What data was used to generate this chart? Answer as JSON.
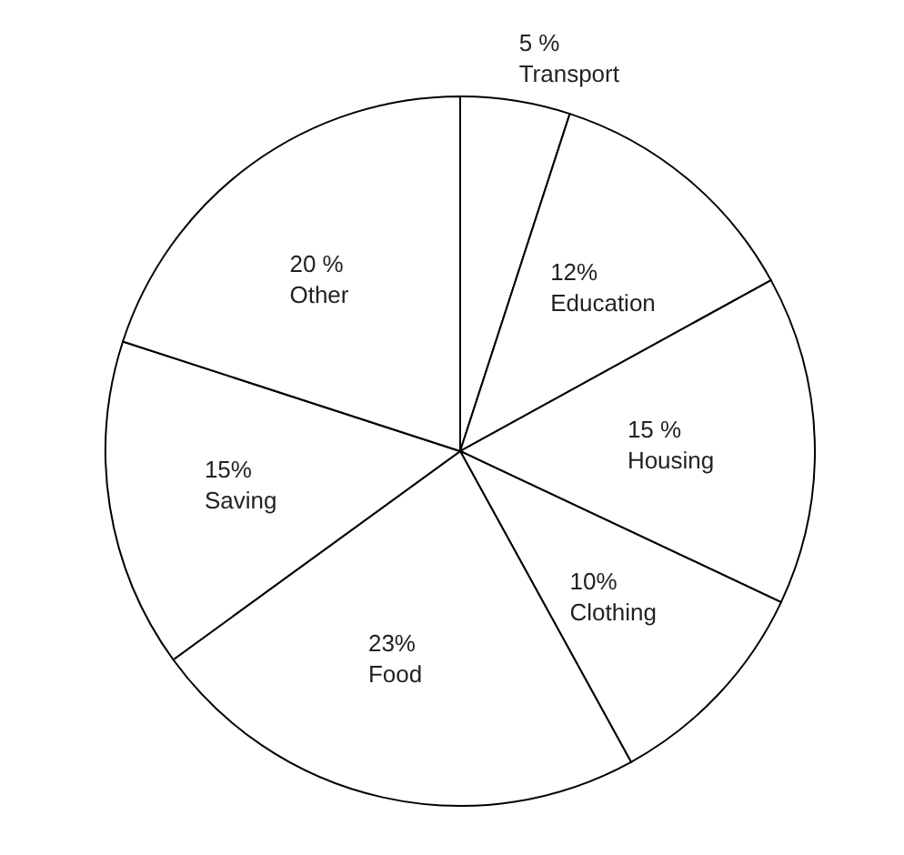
{
  "chart_data": {
    "type": "pie",
    "categories": [
      "Transport",
      "Education",
      "Housing",
      "Clothing",
      "Food",
      "Saving",
      "Other"
    ],
    "values": [
      5,
      12,
      15,
      10,
      23,
      15,
      20
    ],
    "value_labels": [
      "5 %",
      "12%",
      "15 %",
      "10%",
      "23%",
      "15%",
      "20 %"
    ],
    "colors": [
      "#ffffff",
      "#ffffff",
      "#ffffff",
      "#ffffff",
      "#ffffff",
      "#ffffff",
      "#ffffff"
    ],
    "legend": false
  }
}
